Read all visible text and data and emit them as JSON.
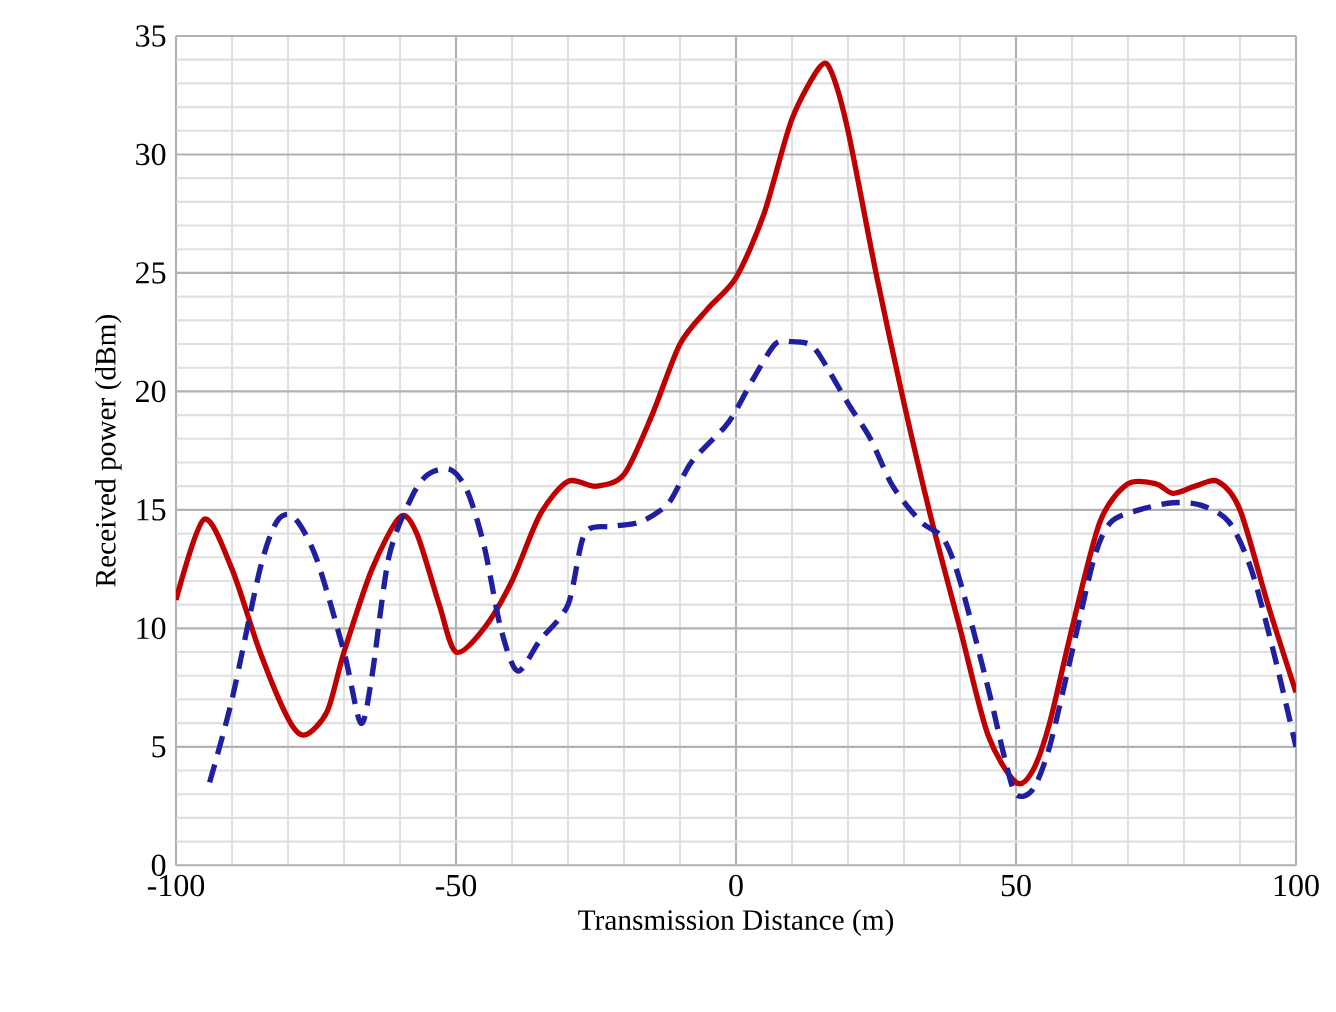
{
  "chart_data": {
    "type": "line",
    "xlabel": "Transmission Distance (m)",
    "ylabel": "Received power (dBm)",
    "xlim": [
      -100,
      100
    ],
    "xticks": [
      -100,
      -50,
      0,
      50,
      100
    ],
    "ylim": [
      0,
      35
    ],
    "yticks": [
      0,
      5,
      10,
      15,
      20,
      25,
      30,
      35
    ],
    "grid": true,
    "marker": "none",
    "series": [
      {
        "color": "#c00000",
        "line_style": "solid",
        "x": [
          -100,
          -95,
          -90,
          -85,
          -80,
          -77,
          -73,
          -70,
          -65,
          -60,
          -57,
          -53,
          -50,
          -45,
          -40,
          -35,
          -30,
          -25,
          -20,
          -15,
          -10,
          -5,
          0,
          5,
          10,
          15,
          17,
          20,
          25,
          30,
          35,
          40,
          45,
          50,
          53,
          56,
          60,
          65,
          70,
          75,
          78,
          82,
          86,
          90,
          95,
          100
        ],
        "values": [
          11.2,
          14.6,
          12.5,
          9,
          6.2,
          5.5,
          6.5,
          9,
          12.5,
          14.7,
          14,
          11,
          9,
          10,
          12,
          14.8,
          16.2,
          16,
          16.5,
          19,
          22,
          23.5,
          24.8,
          27.5,
          31.5,
          33.7,
          33.5,
          31,
          25,
          19.5,
          14.5,
          10,
          5.5,
          3.5,
          4,
          6,
          10,
          14.5,
          16.1,
          16.1,
          15.7,
          16,
          16.2,
          15,
          11,
          7.3
        ]
      },
      {
        "color": "#1f1f9f",
        "line_style": "dashed",
        "x": [
          -94,
          -90,
          -85,
          -82,
          -79,
          -75,
          -70,
          -67,
          -65,
          -62,
          -58,
          -55,
          -51,
          -48,
          -45,
          -42,
          -39,
          -35,
          -30,
          -27,
          -22,
          -17,
          -12,
          -8,
          -2,
          0,
          3,
          7,
          10,
          13,
          15,
          20,
          24,
          28,
          33,
          37,
          40,
          45,
          48,
          50,
          53,
          56,
          60,
          64,
          67,
          72,
          78,
          83,
          88,
          92,
          96,
          100
        ],
        "values": [
          3.5,
          7,
          12.5,
          14.5,
          14.7,
          13,
          9,
          6,
          8,
          13,
          15.5,
          16.5,
          16.7,
          15.8,
          13.5,
          10,
          8.2,
          9.5,
          11,
          14,
          14.3,
          14.5,
          15.3,
          17,
          18.5,
          19.2,
          20.5,
          22,
          22.1,
          22,
          21.5,
          19.5,
          18,
          16,
          14.5,
          13.8,
          12,
          7.5,
          4.5,
          3,
          3.2,
          5,
          9,
          13,
          14.5,
          15,
          15.3,
          15.2,
          14.5,
          12.5,
          9,
          5
        ]
      }
    ]
  }
}
